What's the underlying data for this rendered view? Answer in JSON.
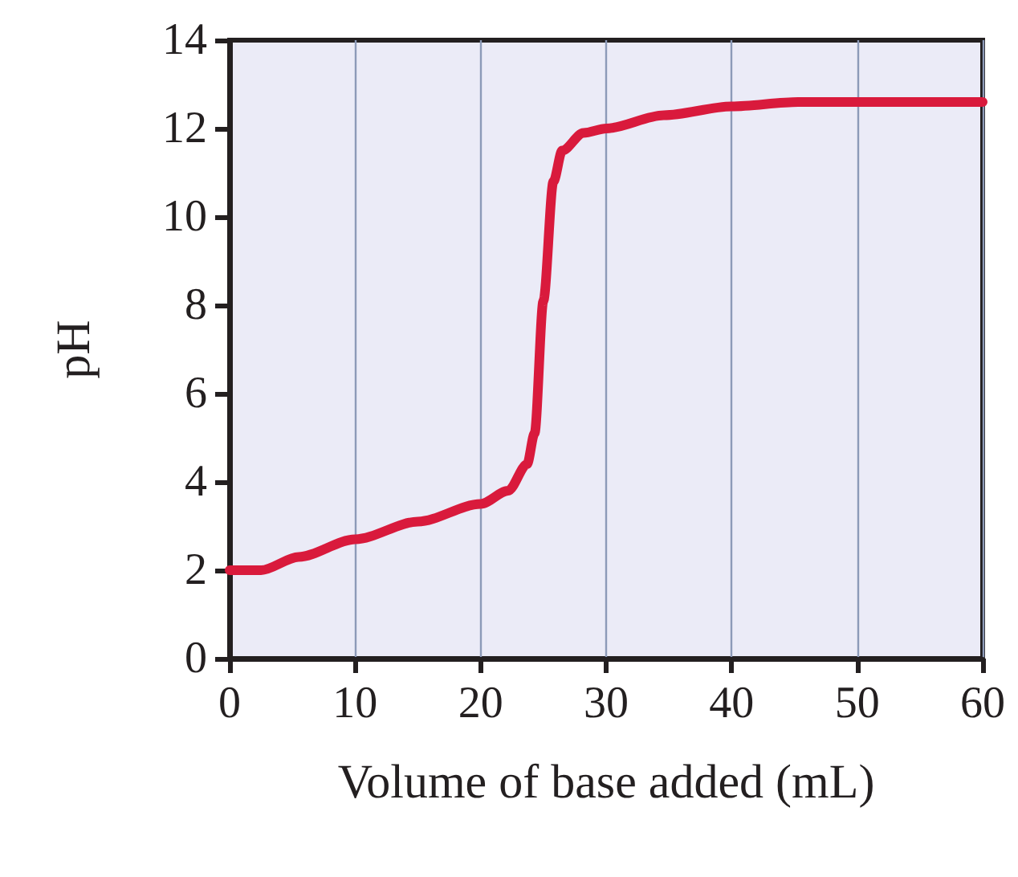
{
  "chart_data": {
    "type": "line",
    "xlabel": "Volume of base added (mL)",
    "ylabel": "pH",
    "x": [
      0,
      2.5,
      5.5,
      10,
      15,
      20,
      22.2,
      23.7,
      24.3,
      25,
      25.8,
      26.5,
      28.2,
      30,
      34.6,
      40,
      45.3,
      50,
      60
    ],
    "series": [
      {
        "color": "#d91a3c",
        "values": [
          2.0,
          2.0,
          2.3,
          2.7,
          3.1,
          3.5,
          3.8,
          4.4,
          5.1,
          8.1,
          10.8,
          11.5,
          11.9,
          12.0,
          12.3,
          12.5,
          12.6,
          12.6,
          12.6
        ]
      }
    ],
    "xlim": [
      0,
      60
    ],
    "xticks": [
      0,
      10,
      20,
      30,
      40,
      50,
      60
    ],
    "ylim": [
      0,
      14
    ],
    "yticks": [
      0,
      2,
      4,
      6,
      8,
      10,
      12,
      14
    ],
    "grid": "x",
    "marker": "none",
    "line_style": "solid"
  }
}
